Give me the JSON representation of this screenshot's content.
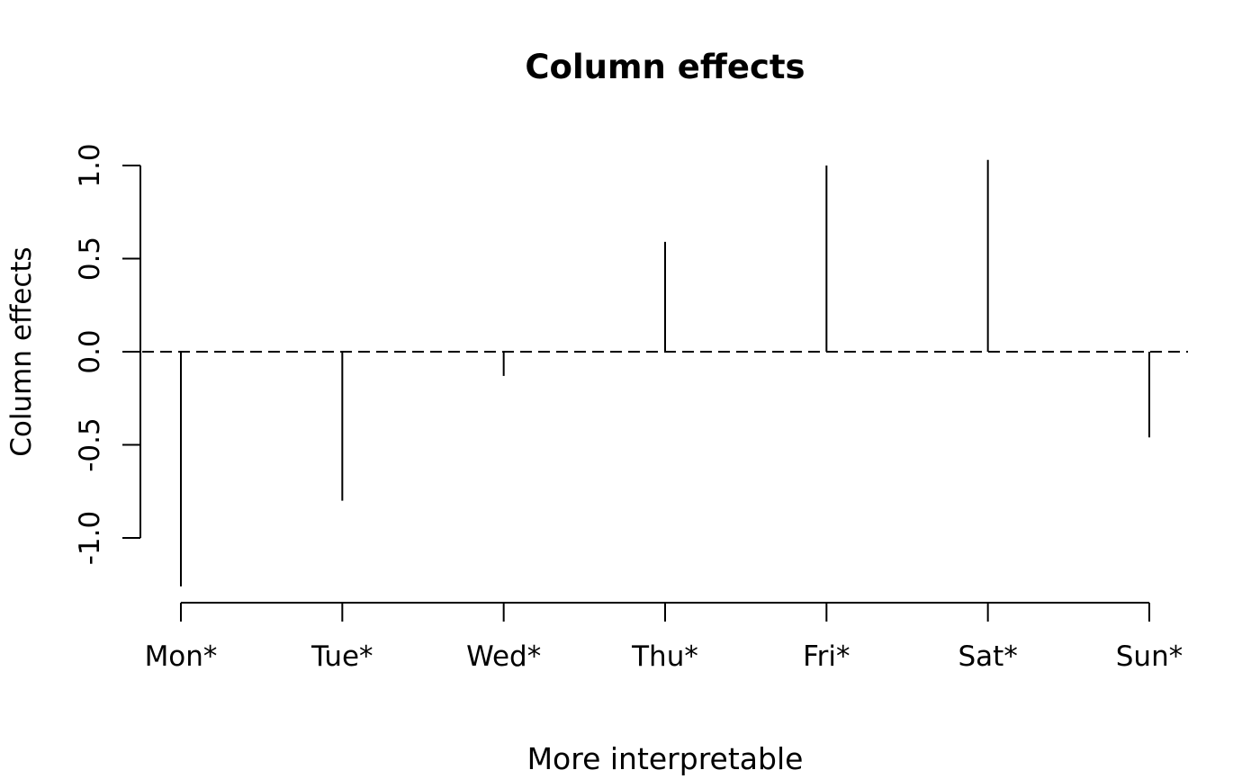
{
  "chart_data": {
    "type": "bar",
    "variant": "needle-spike plot (R base graphics, type='h')",
    "title": "Column effects",
    "xlabel": "More interpretable",
    "ylabel": "Column effects",
    "categories": [
      "Mon*",
      "Tue*",
      "Wed*",
      "Thu*",
      "Fri*",
      "Sat*",
      "Sun*"
    ],
    "values": [
      -1.26,
      -0.8,
      -0.13,
      0.59,
      1.0,
      1.03,
      -0.46
    ],
    "yticks": [
      -1.0,
      -0.5,
      0.0,
      0.5,
      1.0
    ],
    "ytick_labels": [
      "-1.0",
      "-0.5",
      "0.0",
      "0.5",
      "1.0"
    ],
    "ylim": [
      -1.35,
      1.12
    ],
    "reference_line": {
      "y": 0,
      "style": "dashed"
    },
    "grid": false,
    "legend": false,
    "line_color": "#000000",
    "background_color": "#ffffff"
  }
}
